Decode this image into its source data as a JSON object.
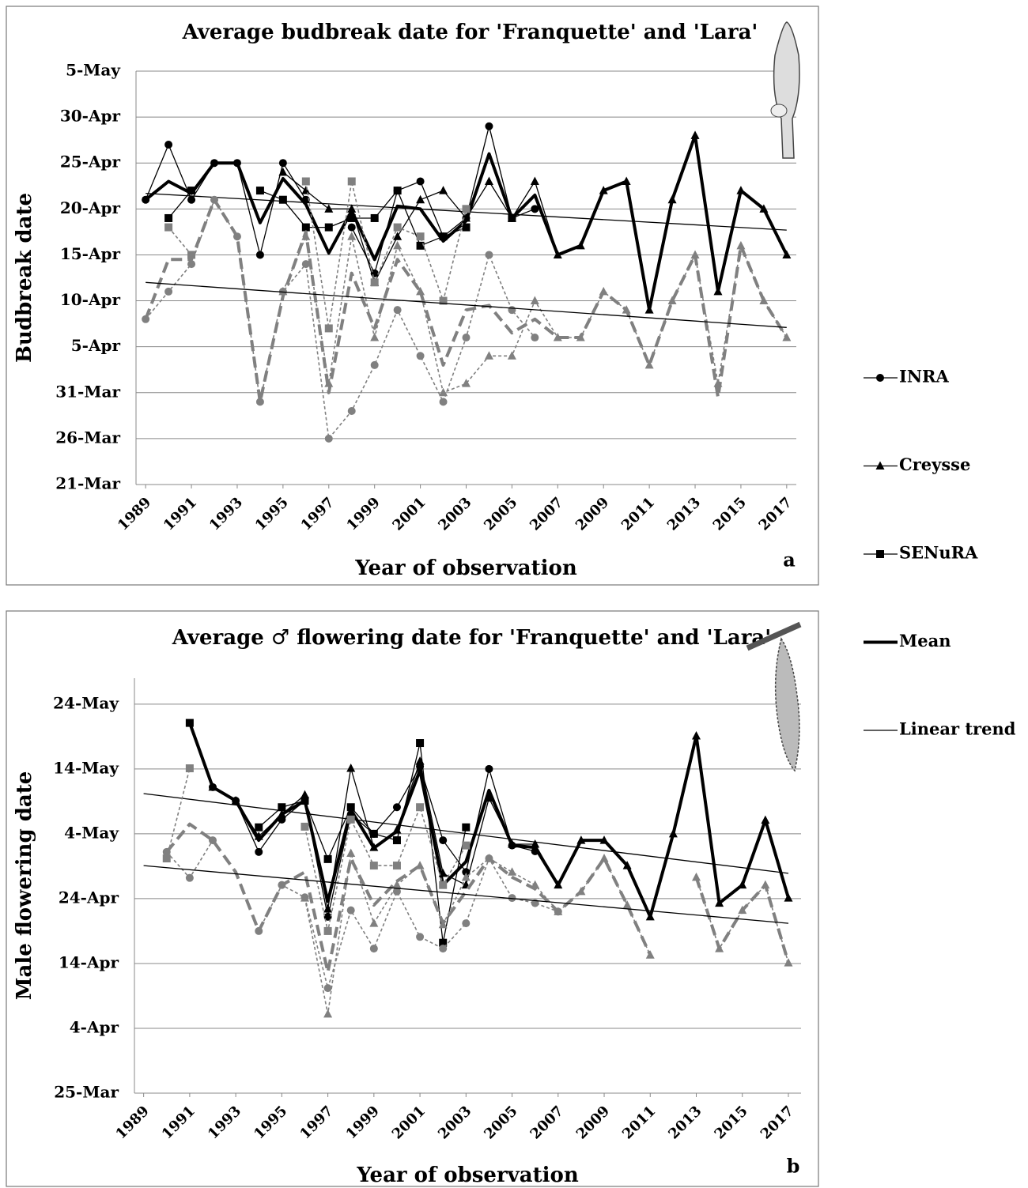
{
  "chart_data": [
    {
      "type": "line",
      "title": "Average budbreak date for 'Franquette' and 'Lara'",
      "xlabel": "Year of observation",
      "ylabel": "Budbreak date",
      "panel_label": "a",
      "grid": true,
      "x": [
        1989,
        1990,
        1991,
        1992,
        1993,
        1994,
        1995,
        1996,
        1997,
        1998,
        1999,
        2000,
        2001,
        2002,
        2003,
        2004,
        2005,
        2006,
        2007,
        2008,
        2009,
        2010,
        2011,
        2012,
        2013,
        2014,
        2015,
        2016,
        2017
      ],
      "xlim": [
        1988.58,
        2017.42
      ],
      "xticks": [
        1989,
        1991,
        1993,
        1995,
        1997,
        1999,
        2001,
        2003,
        2005,
        2007,
        2009,
        2011,
        2013,
        2015,
        2017
      ],
      "ylim": [
        80,
        125
      ],
      "yticks": [
        {
          "value": 80,
          "label": "21-Mar"
        },
        {
          "value": 85,
          "label": "26-Mar"
        },
        {
          "value": 90,
          "label": "31-Mar"
        },
        {
          "value": 95,
          "label": "5-Apr"
        },
        {
          "value": 100,
          "label": "10-Apr"
        },
        {
          "value": 105,
          "label": "15-Apr"
        },
        {
          "value": 110,
          "label": "20-Apr"
        },
        {
          "value": 115,
          "label": "25-Apr"
        },
        {
          "value": 120,
          "label": "30-Apr"
        },
        {
          "value": 125,
          "label": "5-May"
        }
      ],
      "series": [
        {
          "name": "INRA",
          "color": "#000000",
          "style": "thin",
          "marker": "circle",
          "values": [
            111,
            117,
            111,
            115,
            115,
            105,
            115,
            111,
            null,
            108,
            103,
            112,
            113,
            107,
            109,
            119,
            109,
            110,
            null,
            null,
            null,
            null,
            null,
            null,
            null,
            null,
            null,
            null,
            null
          ]
        },
        {
          "name": "Creysse",
          "color": "#000000",
          "style": "thin",
          "marker": "triangle",
          "values": [
            null,
            null,
            null,
            null,
            null,
            null,
            114,
            112,
            110,
            110,
            102,
            107,
            111,
            112,
            109,
            113,
            109,
            113,
            105,
            106,
            112,
            113,
            99,
            111,
            118,
            101,
            112,
            110,
            105
          ]
        },
        {
          "name": "SENuRA",
          "color": "#000000",
          "style": "thin",
          "marker": "square",
          "values": [
            null,
            109,
            112,
            null,
            null,
            112,
            111,
            108,
            108,
            109,
            109,
            112,
            106,
            107,
            108,
            null,
            109,
            null,
            null,
            null,
            null,
            null,
            null,
            null,
            null,
            null,
            null,
            null,
            null
          ]
        },
        {
          "name": "Mean",
          "color": "#000000",
          "style": "thick",
          "marker": "none",
          "values": [
            111,
            113,
            111.7,
            115,
            115,
            108.5,
            113.3,
            110.5,
            105.2,
            109.8,
            104.5,
            110.3,
            110,
            106.5,
            108.7,
            116,
            109,
            111.5,
            105,
            106,
            112,
            113,
            99,
            111,
            118,
            101,
            112,
            110,
            105
          ]
        },
        {
          "name": "Linear trend",
          "color": "#000000",
          "style": "thin",
          "marker": "none",
          "x": [
            1989,
            2017
          ],
          "values": [
            111.7,
            107.7
          ]
        },
        {
          "color": "#808080",
          "style": "dotted",
          "marker": "circle",
          "values": [
            98,
            101,
            104,
            111,
            107,
            89,
            101,
            104,
            85,
            88,
            93,
            99,
            94,
            89,
            96,
            105,
            99,
            96,
            null,
            null,
            null,
            null,
            null,
            null,
            null,
            null,
            null,
            null,
            null
          ]
        },
        {
          "color": "#808080",
          "style": "dotted",
          "marker": "triangle",
          "values": [
            null,
            null,
            null,
            null,
            null,
            null,
            101,
            107,
            91,
            107,
            96,
            106,
            101,
            90,
            91,
            94,
            94,
            100,
            96,
            96,
            101,
            99,
            93,
            100,
            105,
            91,
            106,
            100,
            96
          ]
        },
        {
          "color": "#808080",
          "style": "dotted",
          "marker": "square",
          "values": [
            null,
            108,
            105,
            null,
            null,
            null,
            null,
            113,
            97,
            113,
            102,
            108,
            107,
            100,
            110,
            null,
            null,
            null,
            null,
            null,
            null,
            null,
            null,
            null,
            null,
            null,
            null,
            null,
            null
          ]
        },
        {
          "color": "#808080",
          "style": "dashed",
          "marker": "none",
          "values": [
            98,
            104.5,
            104.5,
            111,
            107,
            89,
            100.5,
            107.5,
            90,
            103,
            97,
            104.5,
            101,
            93,
            99,
            99.5,
            96.5,
            98,
            96,
            96,
            101,
            99,
            93,
            100,
            105,
            89.5,
            106,
            100,
            96
          ]
        },
        {
          "color": "#000000",
          "style": "thin",
          "marker": "none",
          "x": [
            1989,
            2017
          ],
          "values": [
            102,
            97.1
          ]
        }
      ]
    },
    {
      "type": "line",
      "title": "Average ♂ flowering date for 'Franquette' and 'Lara'",
      "xlabel": "Year of observation",
      "ylabel": "Male flowering date",
      "panel_label": "b",
      "grid": true,
      "x": [
        1989,
        1990,
        1991,
        1992,
        1993,
        1994,
        1995,
        1996,
        1997,
        1998,
        1999,
        2000,
        2001,
        2002,
        2003,
        2004,
        2005,
        2006,
        2007,
        2008,
        2009,
        2010,
        2011,
        2012,
        2013,
        2014,
        2015,
        2016,
        2017
      ],
      "xlim": [
        1988.6,
        2017.55
      ],
      "xticks": [
        1989,
        1991,
        1993,
        1995,
        1997,
        1999,
        2001,
        2003,
        2005,
        2007,
        2009,
        2011,
        2013,
        2015,
        2017
      ],
      "ylim": [
        84,
        148
      ],
      "yticks": [
        {
          "value": 84,
          "label": "25-Mar"
        },
        {
          "value": 94,
          "label": "4-Apr"
        },
        {
          "value": 104,
          "label": "14-Apr"
        },
        {
          "value": 114,
          "label": "24-Apr"
        },
        {
          "value": 124,
          "label": "4-May"
        },
        {
          "value": 134,
          "label": "14-May"
        },
        {
          "value": 144,
          "label": "24-May"
        }
      ],
      "series": [
        {
          "color": "#000000",
          "style": "thin",
          "marker": "circle",
          "values": [
            null,
            null,
            null,
            131.2,
            129.1,
            121.2,
            126.2,
            129.1,
            111.2,
            127,
            124,
            128.1,
            134.4,
            123,
            118.1,
            134,
            122.2,
            121.3,
            null,
            null,
            null,
            null,
            null,
            null,
            null,
            null,
            null,
            null,
            null
          ]
        },
        {
          "color": "#000000",
          "style": "thin",
          "marker": "triangle",
          "values": [
            null,
            null,
            null,
            131.2,
            129.1,
            123.6,
            127,
            130,
            112.4,
            134.1,
            121.9,
            124.6,
            135.2,
            117.9,
            116.1,
            129.5,
            122.4,
            122.4,
            116.1,
            123,
            123,
            119.1,
            111.2,
            124,
            139.1,
            113.3,
            116.1,
            126.1,
            114.1
          ]
        },
        {
          "color": "#000000",
          "style": "thin",
          "marker": "square",
          "values": [
            null,
            null,
            141.1,
            null,
            null,
            125,
            128.1,
            129.1,
            120.1,
            128.1,
            124,
            123,
            138,
            107.2,
            125,
            null,
            null,
            null,
            null,
            null,
            null,
            null,
            null,
            null,
            null,
            null,
            null,
            null,
            null
          ]
        },
        {
          "color": "#000000",
          "style": "thick",
          "marker": "none",
          "values": [
            null,
            null,
            141.1,
            131.2,
            129.1,
            123,
            127,
            129.1,
            113.6,
            127.7,
            121.8,
            124.4,
            133.8,
            116.1,
            119.7,
            130.7,
            122.2,
            121.9,
            116.1,
            123,
            123,
            119.1,
            111.2,
            124,
            139.1,
            113.3,
            116.1,
            126.1,
            114.1
          ]
        },
        {
          "color": "#000000",
          "style": "thin",
          "marker": "none",
          "x": [
            1989,
            2017
          ],
          "values": [
            130.2,
            117.9
          ]
        },
        {
          "color": "#808080",
          "style": "dotted",
          "marker": "circle",
          "values": [
            null,
            121.2,
            117.2,
            123,
            null,
            109,
            116.1,
            114.2,
            100.2,
            112.2,
            106.3,
            115.1,
            108.1,
            106.3,
            110.2,
            120.2,
            114.1,
            113.3,
            112,
            null,
            null,
            null,
            null,
            null,
            null,
            null,
            null,
            null,
            null
          ]
        },
        {
          "color": "#808080",
          "style": "dotted",
          "marker": "triangle",
          "values": [
            null,
            null,
            null,
            null,
            null,
            null,
            null,
            114.1,
            96.2,
            121,
            110.2,
            116.1,
            119.1,
            110,
            117.3,
            120.2,
            118.1,
            116.1,
            112,
            115.1,
            120.2,
            113,
            105.3,
            null,
            117.3,
            106.3,
            112.2,
            116.1,
            104.1
          ]
        },
        {
          "color": "#808080",
          "style": "dotted",
          "marker": "square",
          "values": [
            null,
            120.2,
            134.1,
            null,
            null,
            null,
            null,
            125.1,
            109,
            126.2,
            119.1,
            119.1,
            128.1,
            116.1,
            122.2,
            null,
            null,
            null,
            null,
            null,
            null,
            null,
            null,
            null,
            null,
            null,
            null,
            null,
            null
          ]
        },
        {
          "color": "#808080",
          "style": "dashed",
          "marker": "none",
          "values": [
            null,
            121.2,
            125.5,
            123,
            118.1,
            109,
            116.1,
            118.1,
            102.7,
            120.2,
            113,
            116.7,
            119.1,
            110.2,
            115.1,
            120.2,
            117.3,
            115.5,
            112,
            115.1,
            120.2,
            113,
            105.3,
            null,
            117.3,
            106.3,
            112.2,
            116.1,
            104.1
          ]
        },
        {
          "color": "#000000",
          "style": "thin",
          "marker": "none",
          "x": [
            1989,
            2017
          ],
          "values": [
            119.1,
            110.2
          ]
        }
      ]
    }
  ]
}
